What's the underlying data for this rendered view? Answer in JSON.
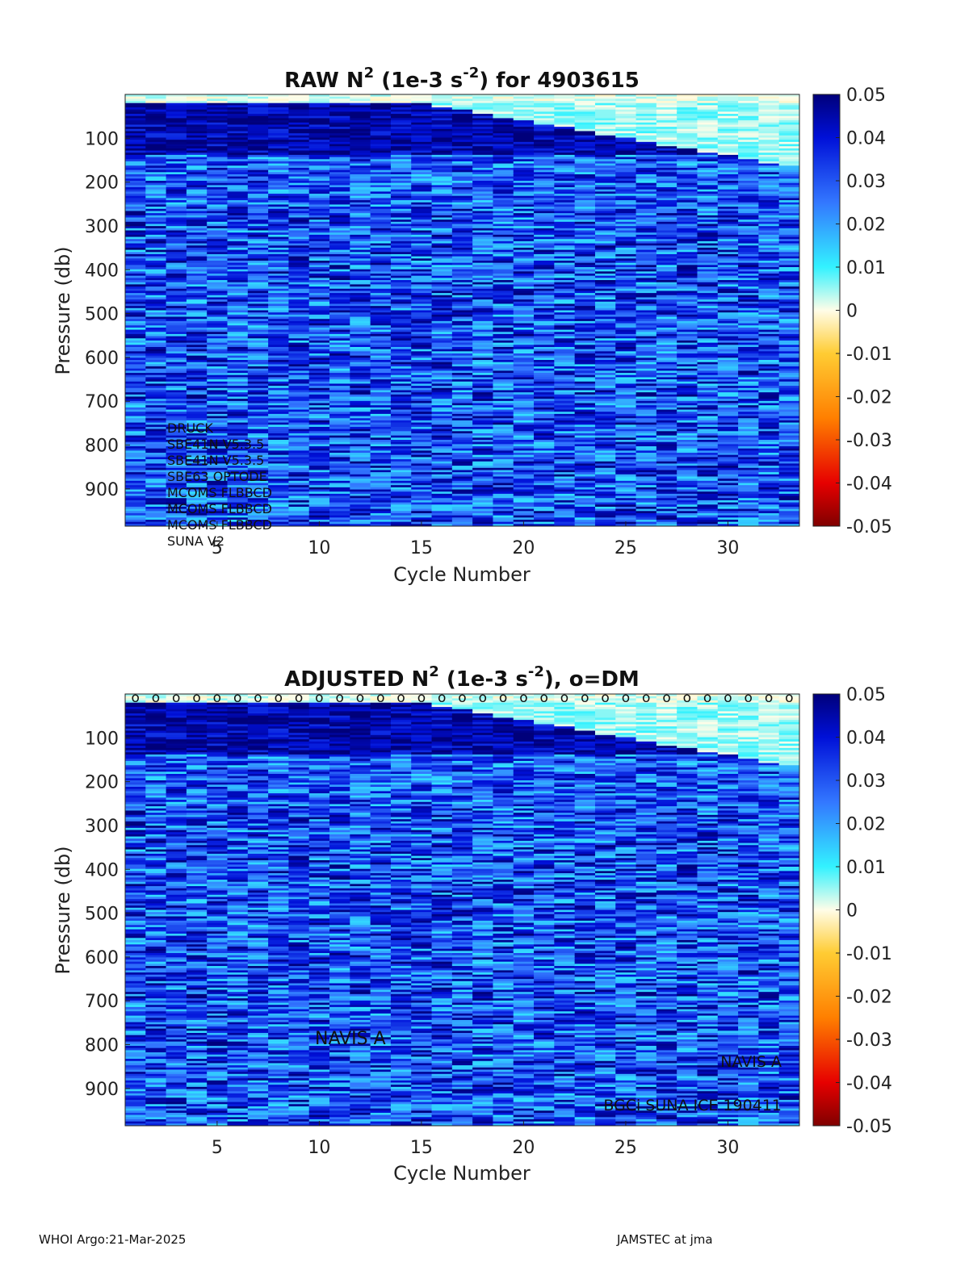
{
  "chart_data": [
    {
      "type": "heatmap",
      "title_parts": [
        "RAW N",
        "2",
        " (1e-3 s",
        "-2",
        ") for 4903615"
      ],
      "xlabel": "Cycle Number",
      "ylabel": "Pressure (db)",
      "xlim": [
        1,
        33
      ],
      "ylim": [
        0,
        985
      ],
      "y_reversed": true,
      "x_ticks": [
        "5",
        "10",
        "15",
        "20",
        "25",
        "30"
      ],
      "y_ticks": [
        "100",
        "200",
        "300",
        "400",
        "500",
        "600",
        "700",
        "800",
        "900"
      ],
      "colorbar": {
        "min": -0.05,
        "max": 0.05,
        "ticks": [
          "0.05",
          "0.04",
          "0.03",
          "0.02",
          "0.01",
          "0",
          "-0.01",
          "-0.02",
          "-0.03",
          "-0.04",
          "-0.05"
        ]
      },
      "annotations": [
        "DRUCK",
        "SBE41N V5.3.5",
        "SBE41N V5.3.5",
        "SBE63 OPTODE",
        "MCOMS FLBBCD",
        "MCOMS FLBBCD",
        "MCOMS FLBBCD",
        "SUNA V2"
      ]
    },
    {
      "type": "heatmap",
      "title_parts": [
        "ADJUSTED N",
        "2",
        " (1e-3 s",
        "-2",
        "), o=DM"
      ],
      "xlabel": "Cycle Number",
      "ylabel": "Pressure (db)",
      "xlim": [
        1,
        33
      ],
      "ylim": [
        0,
        985
      ],
      "y_reversed": true,
      "x_ticks": [
        "5",
        "10",
        "15",
        "20",
        "25",
        "30"
      ],
      "y_ticks": [
        "100",
        "200",
        "300",
        "400",
        "500",
        "600",
        "700",
        "800",
        "900"
      ],
      "colorbar": {
        "min": -0.05,
        "max": 0.05,
        "ticks": [
          "0.05",
          "0.04",
          "0.03",
          "0.02",
          "0.01",
          "0",
          "-0.01",
          "-0.02",
          "-0.03",
          "-0.04",
          "-0.05"
        ]
      },
      "dm_marker": "o",
      "dm_cycles": [
        1,
        2,
        3,
        4,
        5,
        6,
        7,
        8,
        9,
        10,
        11,
        12,
        13,
        14,
        15,
        16,
        17,
        18,
        19,
        20,
        21,
        22,
        23,
        24,
        25,
        26,
        27,
        28,
        29,
        30,
        31,
        32,
        33
      ],
      "annotations": [
        {
          "text": "NAVIS A",
          "pos": "left-middle"
        },
        {
          "text": "NAVIS A",
          "pos": "bottom-right"
        },
        {
          "text": "BGCi SUNA ICE 190411",
          "pos": "bottom-right"
        }
      ]
    }
  ],
  "footer": {
    "left": "WHOI Argo:21-Mar-2025",
    "right": "JAMSTEC at jma"
  }
}
